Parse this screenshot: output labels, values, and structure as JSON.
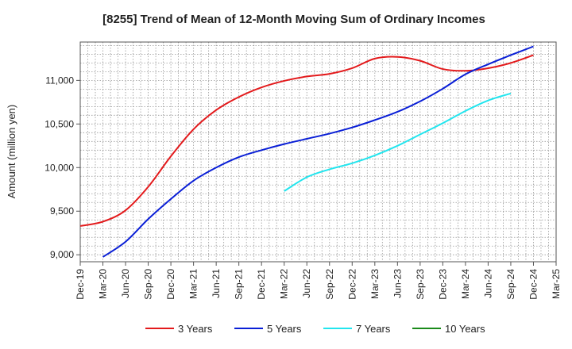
{
  "chart_data": {
    "type": "line",
    "title": "[8255]  Trend of Mean of 12-Month Moving Sum of Ordinary Incomes",
    "xlabel": "",
    "ylabel": "Amount (million yen)",
    "ylim": [
      8920,
      11440
    ],
    "yticks": [
      9000,
      9500,
      10000,
      10500,
      11000
    ],
    "ytick_labels": [
      "9,000",
      "9,500",
      "10,000",
      "10,500",
      "11,000"
    ],
    "x_categories": [
      "Dec-19",
      "Mar-20",
      "Jun-20",
      "Sep-20",
      "Dec-20",
      "Mar-21",
      "Jun-21",
      "Sep-21",
      "Dec-21",
      "Mar-22",
      "Jun-22",
      "Sep-22",
      "Dec-22",
      "Mar-23",
      "Jun-23",
      "Sep-23",
      "Dec-23",
      "Mar-24",
      "Jun-24",
      "Sep-24",
      "Dec-24",
      "Mar-25"
    ],
    "grid": true,
    "legend_position": "bottom",
    "series": [
      {
        "name": "3 Years",
        "color": "#e31a1c",
        "start_index": 0,
        "values": [
          9330,
          9380,
          9510,
          9780,
          10130,
          10440,
          10660,
          10810,
          10920,
          10995,
          11045,
          11075,
          11140,
          11250,
          11270,
          11225,
          11130,
          11110,
          11140,
          11200,
          11290
        ]
      },
      {
        "name": "5 Years",
        "color": "#0a1fd6",
        "start_index": 1,
        "values": [
          8975,
          9150,
          9410,
          9640,
          9850,
          10000,
          10120,
          10200,
          10270,
          10330,
          10390,
          10460,
          10545,
          10640,
          10760,
          10905,
          11070,
          11185,
          11290,
          11390
        ]
      },
      {
        "name": "7 Years",
        "color": "#22e5ee",
        "start_index": 9,
        "values": [
          9730,
          9890,
          9980,
          10050,
          10140,
          10250,
          10380,
          10510,
          10650,
          10770,
          10850
        ]
      },
      {
        "name": "10 Years",
        "color": "#1a8a1a",
        "start_index": 0,
        "values": []
      }
    ]
  }
}
